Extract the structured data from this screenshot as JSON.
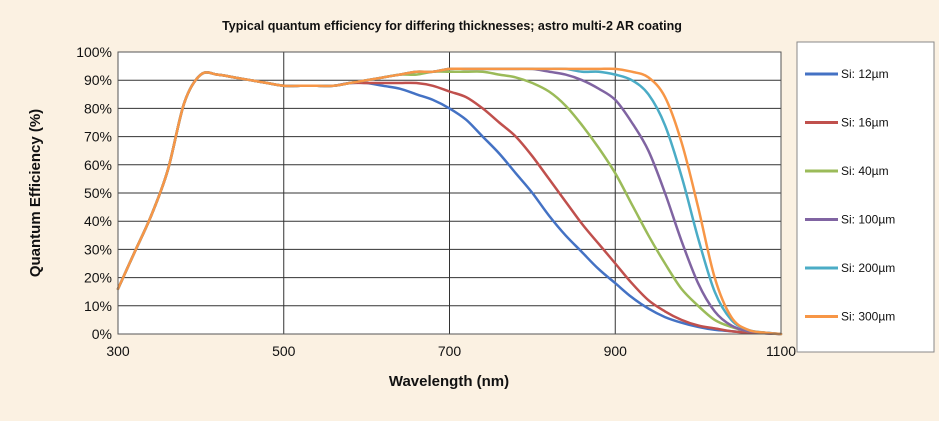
{
  "chart_data": {
    "type": "line",
    "title": "Typical quantum efficiency for differing thicknesses; astro multi-2 AR coating",
    "xlabel": "Wavelength (nm)",
    "ylabel": "Quantum Efficiency (%)",
    "xlim": [
      300,
      1100
    ],
    "ylim": [
      0,
      100
    ],
    "x_ticks": [
      "300",
      "500",
      "700",
      "900",
      "1100"
    ],
    "x_tick_values": [
      300,
      500,
      700,
      900,
      1100
    ],
    "y_ticks": [
      "0%",
      "10%",
      "20%",
      "30%",
      "40%",
      "50%",
      "60%",
      "70%",
      "80%",
      "90%",
      "100%"
    ],
    "y_tick_values": [
      0,
      10,
      20,
      30,
      40,
      50,
      60,
      70,
      80,
      90,
      100
    ],
    "grid": true,
    "legend_position": "right",
    "series": [
      {
        "name": "Si: 12µm",
        "color": "#4472c4",
        "x": [
          300,
          320,
          340,
          360,
          380,
          400,
          420,
          440,
          460,
          480,
          500,
          520,
          540,
          560,
          580,
          600,
          620,
          640,
          660,
          680,
          700,
          720,
          740,
          760,
          780,
          800,
          820,
          840,
          860,
          880,
          900,
          920,
          940,
          960,
          980,
          1000,
          1020,
          1040,
          1060,
          1080,
          1100
        ],
        "y": [
          16,
          29,
          42,
          58,
          82,
          92,
          92,
          91,
          90,
          89,
          88,
          88,
          88,
          88,
          89,
          89,
          88,
          87,
          85,
          83,
          80,
          76,
          70,
          64,
          57,
          50,
          42,
          35,
          29,
          23,
          18,
          13,
          9,
          6,
          4,
          2.5,
          1.5,
          1,
          0.5,
          0.3,
          0
        ]
      },
      {
        "name": "Si: 16µm",
        "color": "#c0504d",
        "x": [
          300,
          320,
          340,
          360,
          380,
          400,
          420,
          440,
          460,
          480,
          500,
          520,
          540,
          560,
          580,
          600,
          620,
          640,
          660,
          680,
          700,
          720,
          740,
          760,
          780,
          800,
          820,
          840,
          860,
          880,
          900,
          920,
          940,
          960,
          980,
          1000,
          1020,
          1040,
          1060,
          1080,
          1100
        ],
        "y": [
          16,
          29,
          42,
          58,
          82,
          92,
          92,
          91,
          90,
          89,
          88,
          88,
          88,
          88,
          89,
          89,
          89,
          89,
          89,
          88,
          86,
          84,
          80,
          75,
          70,
          63,
          55,
          47,
          39,
          32,
          25,
          18,
          12,
          8,
          5,
          3,
          2,
          1,
          0.5,
          0.3,
          0
        ]
      },
      {
        "name": "Si: 40µm",
        "color": "#9bbb59",
        "x": [
          300,
          320,
          340,
          360,
          380,
          400,
          420,
          440,
          460,
          480,
          500,
          520,
          540,
          560,
          580,
          600,
          620,
          640,
          660,
          680,
          700,
          720,
          740,
          760,
          780,
          800,
          820,
          840,
          860,
          880,
          900,
          920,
          940,
          960,
          980,
          1000,
          1020,
          1040,
          1060,
          1080,
          1100
        ],
        "y": [
          16,
          29,
          42,
          58,
          82,
          92,
          92,
          91,
          90,
          89,
          88,
          88,
          88,
          88,
          89,
          90,
          91,
          92,
          92,
          93,
          93,
          93,
          93,
          92,
          91,
          89,
          86,
          81,
          74,
          66,
          57,
          46,
          35,
          25,
          16,
          10,
          5,
          2.5,
          1,
          0.5,
          0
        ]
      },
      {
        "name": "Si: 100µm",
        "color": "#8064a2",
        "x": [
          300,
          320,
          340,
          360,
          380,
          400,
          420,
          440,
          460,
          480,
          500,
          520,
          540,
          560,
          580,
          600,
          620,
          640,
          660,
          680,
          700,
          720,
          740,
          760,
          780,
          800,
          820,
          840,
          860,
          880,
          900,
          920,
          940,
          960,
          980,
          1000,
          1020,
          1040,
          1060,
          1080,
          1100
        ],
        "y": [
          16,
          29,
          42,
          58,
          82,
          92,
          92,
          91,
          90,
          89,
          88,
          88,
          88,
          88,
          89,
          90,
          91,
          92,
          93,
          93,
          94,
          94,
          94,
          94,
          94,
          94,
          93,
          92,
          90,
          87,
          83,
          75,
          65,
          50,
          33,
          18,
          8,
          3,
          1,
          0.5,
          0
        ]
      },
      {
        "name": "Si: 200µm",
        "color": "#4bacc6",
        "x": [
          300,
          320,
          340,
          360,
          380,
          400,
          420,
          440,
          460,
          480,
          500,
          520,
          540,
          560,
          580,
          600,
          620,
          640,
          660,
          680,
          700,
          720,
          740,
          760,
          780,
          800,
          820,
          840,
          860,
          880,
          900,
          920,
          940,
          960,
          980,
          1000,
          1020,
          1040,
          1060,
          1080,
          1100
        ],
        "y": [
          16,
          29,
          42,
          58,
          82,
          92,
          92,
          91,
          90,
          89,
          88,
          88,
          88,
          88,
          89,
          90,
          91,
          92,
          93,
          93,
          94,
          94,
          94,
          94,
          94,
          94,
          94,
          94,
          93,
          93,
          92,
          90,
          85,
          74,
          56,
          34,
          15,
          5,
          1.5,
          0.5,
          0
        ]
      },
      {
        "name": "Si: 300µm",
        "color": "#f79646",
        "x": [
          300,
          320,
          340,
          360,
          380,
          400,
          420,
          440,
          460,
          480,
          500,
          520,
          540,
          560,
          580,
          600,
          620,
          640,
          660,
          680,
          700,
          720,
          740,
          760,
          780,
          800,
          820,
          840,
          860,
          880,
          900,
          920,
          940,
          960,
          980,
          1000,
          1020,
          1040,
          1060,
          1080,
          1100
        ],
        "y": [
          16,
          29,
          42,
          58,
          82,
          92,
          92,
          91,
          90,
          89,
          88,
          88,
          88,
          88,
          89,
          90,
          91,
          92,
          93,
          93,
          94,
          94,
          94,
          94,
          94,
          94,
          94,
          94,
          94,
          94,
          94,
          93,
          91,
          84,
          68,
          45,
          20,
          6,
          1.5,
          0.5,
          0
        ]
      }
    ]
  }
}
